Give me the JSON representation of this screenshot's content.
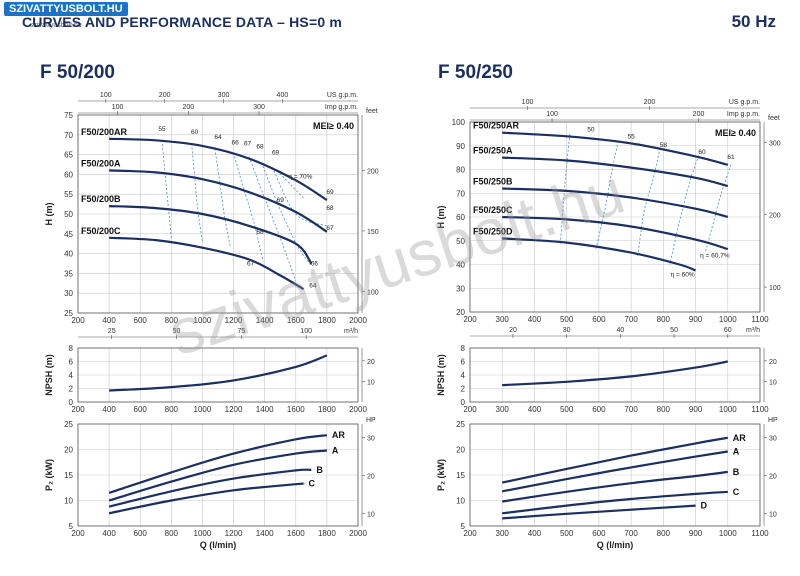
{
  "header": {
    "title": "CURVES AND PERFORMANCE DATA – HS=0 m",
    "frequency": "50 Hz",
    "logo": "SZIVATTYUSBOLT.HU",
    "logo_sub": "szivattyusbolt.hu",
    "watermark": "szivattyusbolt.hu"
  },
  "colors": {
    "curve": "#1b2f63",
    "efficiency": "#3a8fd6",
    "grid": "#c9c9c9",
    "title": "#1b2f63"
  },
  "chart_data": [
    {
      "id": "F50_200",
      "model": "F 50/200",
      "mei": "MEI≥ 0.40",
      "head": {
        "type": "line",
        "ylabel": "H (m)",
        "ylim": [
          25,
          75
        ],
        "yticks": [
          25,
          30,
          35,
          40,
          45,
          50,
          55,
          60,
          65,
          70,
          75
        ],
        "xlim": [
          200,
          2000
        ],
        "xticks": [
          200,
          400,
          600,
          800,
          1000,
          1200,
          1400,
          1600,
          1800,
          2000
        ],
        "x_top_label": "US g.p.m.",
        "x_top_ticks": [
          [
            "100",
            100
          ],
          [
            "200",
            200
          ],
          [
            "300",
            300
          ],
          [
            "400",
            400
          ]
        ],
        "x_top_factor": 3.785,
        "x_top2_label": "Imp g.p.m.",
        "x_top2_ticks": [
          [
            "100",
            100
          ],
          [
            "200",
            200
          ],
          [
            "300",
            300
          ]
        ],
        "x_top2_factor": 4.546,
        "x_bottom2_label": "m³/h",
        "x_bottom2_ticks": [
          [
            "25",
            25
          ],
          [
            "50",
            50
          ],
          [
            "75",
            75
          ],
          [
            "100",
            100
          ]
        ],
        "x_bottom2_factor": 16.667,
        "y_right_label": "feet",
        "y_right_ticks": [
          [
            "100",
            100
          ],
          [
            "150",
            150
          ],
          [
            "200",
            200
          ]
        ],
        "y_right_factor": 0.3048,
        "series": [
          {
            "name": "F50/200AR",
            "x": [
              400,
              700,
              1000,
              1300,
              1600,
              1800
            ],
            "values": [
              69,
              68.6,
              67.2,
              64,
              58.5,
              53.5
            ]
          },
          {
            "name": "F50/200A",
            "x": [
              400,
              700,
              1000,
              1300,
              1600,
              1800
            ],
            "values": [
              61,
              60.5,
              58.8,
              55.5,
              50.5,
              45.5
            ]
          },
          {
            "name": "F50/200B",
            "x": [
              400,
              700,
              1000,
              1300,
              1600,
              1700
            ],
            "values": [
              52,
              51.5,
              50,
              47,
              42.5,
              37.5
            ]
          },
          {
            "name": "F50/200C",
            "x": [
              400,
              700,
              1000,
              1300,
              1500,
              1650
            ],
            "values": [
              44,
              43.4,
              41.5,
              38.5,
              34.5,
              31
            ]
          }
        ],
        "efficiency": [
          {
            "label": "55",
            "x": [
              740,
              760,
              780,
              800
            ],
            "values": [
              68.6,
              60,
              52,
              44
            ]
          },
          {
            "label": "60",
            "x": [
              930,
              950,
              970,
              1000
            ],
            "values": [
              67.8,
              59.5,
              51,
              43
            ]
          },
          {
            "label": "64",
            "x": [
              1080,
              1110,
              1140,
              1180
            ],
            "values": [
              66.5,
              58.5,
              50,
              41.6
            ]
          },
          {
            "label": "66",
            "x": [
              1200,
              1260,
              1330,
              1390
            ],
            "values": [
              65.5,
              57,
              48,
              38
            ]
          },
          {
            "label": "67",
            "x": [
              1300,
              1390,
              1500,
              1600
            ],
            "values": [
              64.5,
              55,
              44,
              33
            ]
          },
          {
            "label": "68",
            "x": [
              1380,
              1490,
              1610,
              1700
            ],
            "values": [
              63,
              52,
              42,
              37
            ]
          },
          {
            "label": "69",
            "x": [
              1450,
              1600,
              1800
            ],
            "values": [
              61.8,
              50,
              47
            ]
          },
          {
            "label": "70",
            "x": [
              1480,
              1650
            ],
            "values": [
              61,
              54
            ]
          }
        ],
        "eff_labels": [
          {
            "text": "55",
            "x": 740,
            "y": 71
          },
          {
            "text": "60",
            "x": 950,
            "y": 70.2
          },
          {
            "text": "64",
            "x": 1100,
            "y": 69
          },
          {
            "text": "66",
            "x": 1210,
            "y": 67.5
          },
          {
            "text": "67",
            "x": 1290,
            "y": 67.3
          },
          {
            "text": "68",
            "x": 1370,
            "y": 66.5
          },
          {
            "text": "69",
            "x": 1470,
            "y": 65
          },
          {
            "text": "η = 70%",
            "x": 1630,
            "y": 59
          },
          {
            "text": "69",
            "x": 1820,
            "y": 55
          },
          {
            "text": "68",
            "x": 1820,
            "y": 51
          },
          {
            "text": "67",
            "x": 1820,
            "y": 46
          },
          {
            "text": "69",
            "x": 1500,
            "y": 53
          },
          {
            "text": "68",
            "x": 1370,
            "y": 45
          },
          {
            "text": "67",
            "x": 1310,
            "y": 37
          },
          {
            "text": "66",
            "x": 1720,
            "y": 37
          },
          {
            "text": "64",
            "x": 1710,
            "y": 31.5
          }
        ]
      },
      "npsh": {
        "ylabel": "NPSH (m)",
        "ylim": [
          0,
          8
        ],
        "yticks": [
          0,
          2,
          4,
          6,
          8
        ],
        "xlim": [
          200,
          2000
        ],
        "xticks": [
          200,
          400,
          600,
          800,
          1000,
          1200,
          1400,
          1600,
          1800,
          2000
        ],
        "y_right_ticks": [
          [
            "10",
            10
          ],
          [
            "20",
            20
          ]
        ],
        "y_right_factor": 0.3048,
        "series": [
          {
            "name": "NPSH",
            "x": [
              400,
              800,
              1200,
              1600,
              1800
            ],
            "values": [
              1.7,
              2.2,
              3.2,
              5.2,
              6.9
            ]
          }
        ]
      },
      "power": {
        "ylabel": "P₂ (kW)",
        "ylim": [
          5,
          25
        ],
        "yticks": [
          5,
          10,
          15,
          20,
          25
        ],
        "xlim": [
          200,
          2000
        ],
        "xticks": [
          200,
          400,
          600,
          800,
          1000,
          1200,
          1400,
          1600,
          1800,
          2000
        ],
        "xlabel": "Q (l/min)",
        "y_right_label": "HP",
        "y_right_ticks": [
          [
            "10",
            10
          ],
          [
            "20",
            20
          ],
          [
            "30",
            30
          ]
        ],
        "y_right_factor": 0.7457,
        "series": [
          {
            "name": "AR",
            "x": [
              400,
              800,
              1200,
              1600,
              1800
            ],
            "values": [
              11.5,
              15.5,
              19.2,
              22,
              22.8
            ]
          },
          {
            "name": "A",
            "x": [
              400,
              800,
              1200,
              1600,
              1800
            ],
            "values": [
              10,
              13.7,
              17,
              19.2,
              19.8
            ]
          },
          {
            "name": "B",
            "x": [
              400,
              800,
              1200,
              1600,
              1700
            ],
            "values": [
              8.8,
              11.8,
              14.3,
              15.9,
              16
            ]
          },
          {
            "name": "C",
            "x": [
              400,
              800,
              1200,
              1600,
              1650
            ],
            "values": [
              7.5,
              10,
              12,
              13.2,
              13.3
            ]
          }
        ]
      }
    },
    {
      "id": "F50_250",
      "model": "F 50/250",
      "mei": "MEI≥ 0.40",
      "head": {
        "type": "line",
        "ylabel": "H (m)",
        "ylim": [
          20,
          100
        ],
        "yticks": [
          20,
          30,
          40,
          50,
          60,
          70,
          80,
          90,
          100
        ],
        "xlim": [
          200,
          1100
        ],
        "xticks": [
          200,
          300,
          400,
          500,
          600,
          700,
          800,
          900,
          1000,
          1100
        ],
        "x_top_label": "US g.p.m.",
        "x_top_ticks": [
          [
            "100",
            100
          ],
          [
            "200",
            200
          ]
        ],
        "x_top_factor": 3.785,
        "x_top2_label": "Imp g.p.m.",
        "x_top2_ticks": [
          [
            "100",
            100
          ],
          [
            "200",
            200
          ]
        ],
        "x_top2_factor": 4.546,
        "x_bottom2_label": "m³/h",
        "x_bottom2_ticks": [
          [
            "20",
            20
          ],
          [
            "30",
            30
          ],
          [
            "40",
            40
          ],
          [
            "50",
            50
          ],
          [
            "60",
            60
          ]
        ],
        "x_bottom2_factor": 16.667,
        "y_right_label": "feet",
        "y_right_ticks": [
          [
            "100",
            100
          ],
          [
            "200",
            200
          ],
          [
            "300",
            300
          ]
        ],
        "y_right_factor": 0.3048,
        "series": [
          {
            "name": "F50/250AR",
            "x": [
              300,
              500,
              700,
              900,
              1000
            ],
            "values": [
              95.5,
              94,
              91,
              85.5,
              82
            ]
          },
          {
            "name": "F50/250A",
            "x": [
              300,
              500,
              700,
              900,
              1000
            ],
            "values": [
              85,
              83.8,
              80.8,
              76.5,
              73
            ]
          },
          {
            "name": "F50/250B",
            "x": [
              300,
              500,
              700,
              900,
              1000
            ],
            "values": [
              72,
              71,
              68.2,
              63.5,
              60
            ]
          },
          {
            "name": "F50/250C",
            "x": [
              300,
              500,
              700,
              900,
              1000
            ],
            "values": [
              60,
              59,
              56,
              50.5,
              46.5
            ]
          },
          {
            "name": "F50/250D",
            "x": [
              300,
              500,
              700,
              850,
              900
            ],
            "values": [
              51,
              49.2,
              45,
              40,
              37.5
            ]
          }
        ],
        "efficiency": [
          {
            "label": "50",
            "x": [
              510,
              500,
              490,
              480
            ],
            "values": [
              95,
              82,
              66,
              48
            ]
          },
          {
            "label": "55",
            "x": [
              660,
              640,
              620,
              590
            ],
            "values": [
              92,
              79,
              64,
              46
            ]
          },
          {
            "label": "58",
            "x": [
              790,
              770,
              740,
              720
            ],
            "values": [
              89,
              77,
              62,
              43
            ]
          },
          {
            "label": "60",
            "x": [
              910,
              880,
              850,
              820
            ],
            "values": [
              86,
              74,
              58,
              40
            ]
          },
          {
            "label": "61",
            "x": [
              1010,
              980,
              950,
              930
            ],
            "values": [
              82,
              70,
              55,
              45
            ]
          }
        ],
        "eff_labels": [
          {
            "text": "50",
            "x": 575,
            "y": 96
          },
          {
            "text": "55",
            "x": 700,
            "y": 93
          },
          {
            "text": "58",
            "x": 800,
            "y": 89.5
          },
          {
            "text": "60",
            "x": 920,
            "y": 86.5
          },
          {
            "text": "61",
            "x": 1010,
            "y": 84.5
          },
          {
            "text": "η = 60.7%",
            "x": 960,
            "y": 43
          },
          {
            "text": "η = 60%",
            "x": 860,
            "y": 35
          }
        ]
      },
      "npsh": {
        "ylabel": "NPSH (m)",
        "ylim": [
          0,
          8
        ],
        "yticks": [
          0,
          2,
          4,
          6,
          8
        ],
        "xlim": [
          200,
          1100
        ],
        "xticks": [
          200,
          300,
          400,
          500,
          600,
          700,
          800,
          900,
          1000,
          1100
        ],
        "y_right_ticks": [
          [
            "10",
            10
          ],
          [
            "20",
            20
          ]
        ],
        "y_right_factor": 0.3048,
        "series": [
          {
            "name": "NPSH",
            "x": [
              300,
              500,
              700,
              900,
              1000
            ],
            "values": [
              2.5,
              3,
              3.8,
              5.1,
              6
            ]
          }
        ]
      },
      "power": {
        "ylabel": "P₂ (kW)",
        "ylim": [
          5,
          25
        ],
        "yticks": [
          5,
          10,
          15,
          20,
          25
        ],
        "xlim": [
          200,
          1100
        ],
        "xticks": [
          200,
          300,
          400,
          500,
          600,
          700,
          800,
          900,
          1000,
          1100
        ],
        "xlabel": "Q (l/min)",
        "y_right_label": "HP",
        "y_right_ticks": [
          [
            "10",
            10
          ],
          [
            "20",
            20
          ],
          [
            "30",
            30
          ]
        ],
        "y_right_factor": 0.7457,
        "series": [
          {
            "name": "AR",
            "x": [
              300,
              500,
              700,
              900,
              1000
            ],
            "values": [
              13.5,
              16.2,
              18.8,
              21.2,
              22.3
            ]
          },
          {
            "name": "A",
            "x": [
              300,
              500,
              700,
              900,
              1000
            ],
            "values": [
              11.8,
              14.2,
              16.5,
              18.6,
              19.6
            ]
          },
          {
            "name": "B",
            "x": [
              300,
              500,
              700,
              900,
              1000
            ],
            "values": [
              9.8,
              11.7,
              13.4,
              14.8,
              15.6
            ]
          },
          {
            "name": "C",
            "x": [
              300,
              500,
              700,
              900,
              1000
            ],
            "values": [
              7.5,
              9,
              10.3,
              11.3,
              11.7
            ]
          },
          {
            "name": "D",
            "x": [
              300,
              500,
              700,
              900
            ],
            "values": [
              6.5,
              7.4,
              8.2,
              9
            ]
          }
        ]
      }
    }
  ]
}
